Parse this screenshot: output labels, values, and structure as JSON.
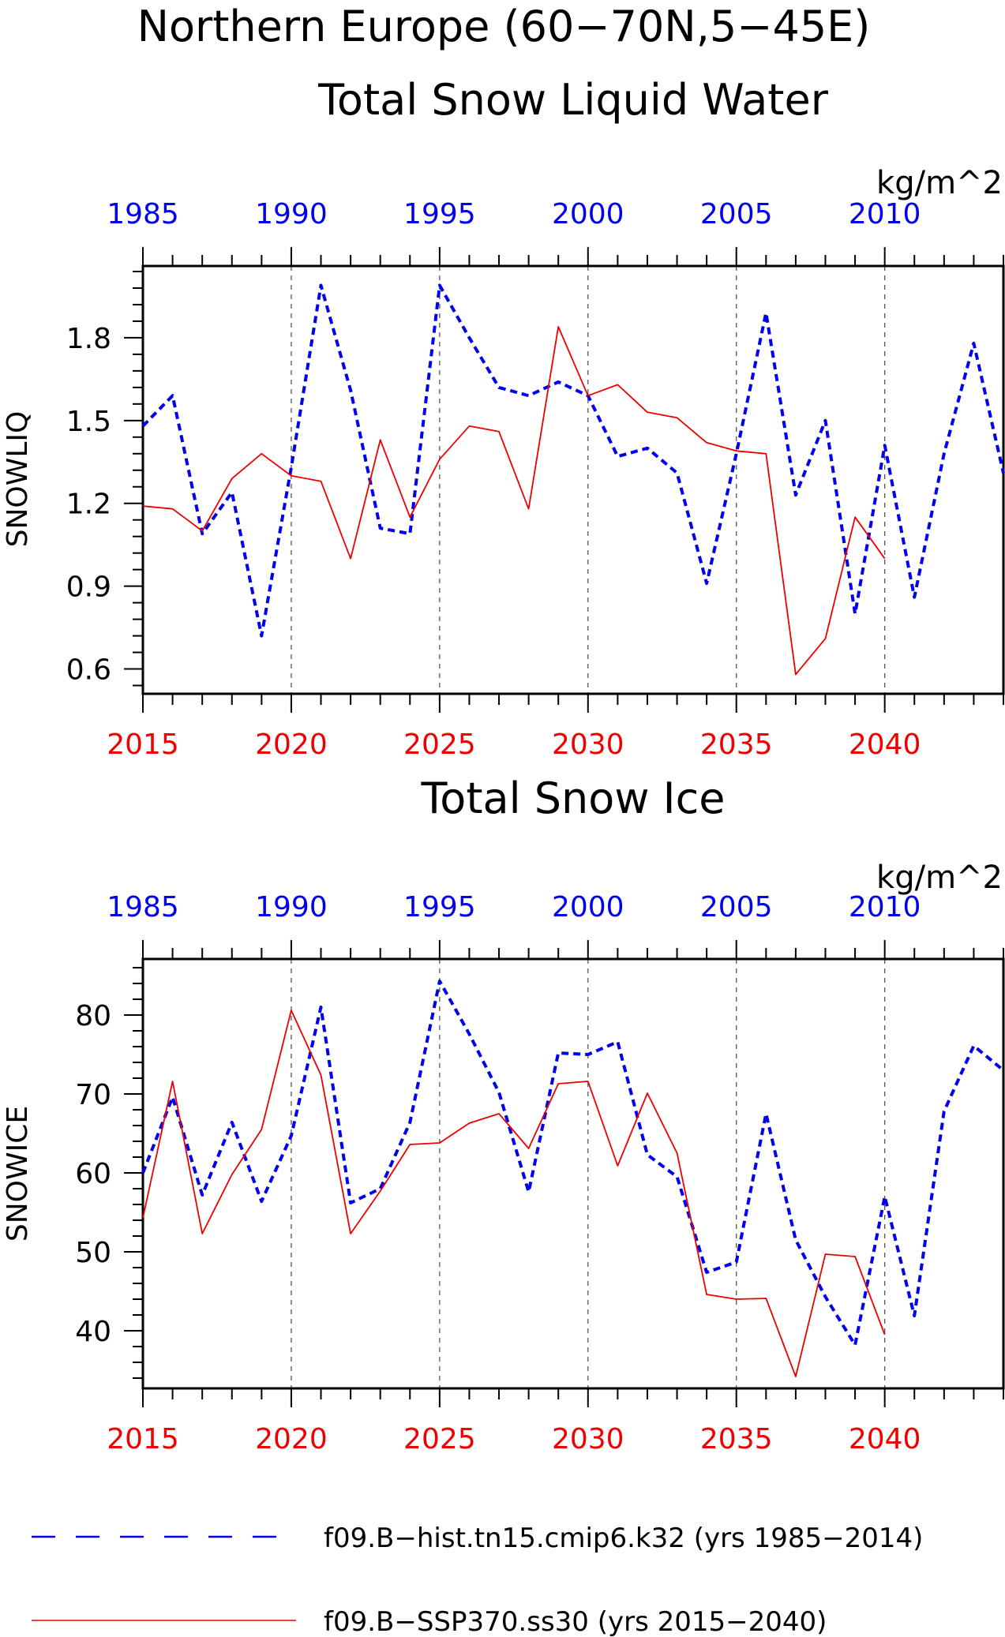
{
  "header": {
    "title_line1": "Northern Europe (60−70N,5−45E)"
  },
  "colors": {
    "hist": "#0000ee",
    "ssp": "#ee0000",
    "axis": "#000000",
    "grid": "#555555"
  },
  "legend": {
    "hist_label": "f09.B−hist.tn15.cmip6.k32 (yrs 1985−2014)",
    "ssp_label": "f09.B−SSP370.ss30 (yrs 2015−2040)"
  },
  "chart_data": [
    {
      "type": "line",
      "title": "Total Snow Liquid Water",
      "units": "kg/m^2",
      "ylabel": "SNOWLIQ",
      "ylim": [
        0.51,
        2.06
      ],
      "yticks": [
        0.6,
        0.9,
        1.2,
        1.5,
        1.8
      ],
      "ytick_labels": [
        "0.6",
        "0.9",
        "1.2",
        "1.5",
        "1.8"
      ],
      "x_bottom": {
        "range": [
          2015,
          2044
        ],
        "ticks": [
          2015,
          2020,
          2025,
          2030,
          2035,
          2040
        ],
        "labels": [
          "2015",
          "2020",
          "2025",
          "2030",
          "2035",
          "2040"
        ]
      },
      "x_top": {
        "range": [
          1985,
          2014
        ],
        "ticks": [
          1985,
          1990,
          1995,
          2000,
          2005,
          2010
        ],
        "labels": [
          "1985",
          "1990",
          "1995",
          "2000",
          "2005",
          "2010"
        ]
      },
      "grid_x": [
        2020,
        2025,
        2030,
        2035,
        2040
      ],
      "series": [
        {
          "name": "f09.B−hist.tn15.cmip6.k32 (yrs 1985−2014)",
          "axis": "top",
          "x": [
            1985,
            1986,
            1987,
            1988,
            1989,
            1990,
            1991,
            1992,
            1993,
            1994,
            1995,
            1996,
            1997,
            1998,
            1999,
            2000,
            2001,
            2002,
            2003,
            2004,
            2005,
            2006,
            2007,
            2008,
            2009,
            2010,
            2011,
            2012,
            2013,
            2014
          ],
          "y": [
            1.48,
            1.59,
            1.09,
            1.24,
            0.72,
            1.33,
            1.99,
            1.61,
            1.11,
            1.09,
            1.99,
            1.8,
            1.62,
            1.59,
            1.64,
            1.59,
            1.37,
            1.4,
            1.31,
            0.91,
            1.38,
            1.89,
            1.23,
            1.5,
            0.8,
            1.41,
            0.86,
            1.38,
            1.78,
            1.31
          ]
        },
        {
          "name": "f09.B−SSP370.ss30 (yrs 2015−2040)",
          "axis": "bottom",
          "x": [
            2015,
            2016,
            2017,
            2018,
            2019,
            2020,
            2021,
            2022,
            2023,
            2024,
            2025,
            2026,
            2027,
            2028,
            2029,
            2030,
            2031,
            2032,
            2033,
            2034,
            2035,
            2036,
            2037,
            2038,
            2039,
            2040
          ],
          "y": [
            1.19,
            1.18,
            1.1,
            1.29,
            1.38,
            1.3,
            1.28,
            1.0,
            1.43,
            1.15,
            1.36,
            1.48,
            1.46,
            1.18,
            1.84,
            1.59,
            1.63,
            1.53,
            1.51,
            1.42,
            1.39,
            1.38,
            0.58,
            0.71,
            1.15,
            1.0
          ]
        }
      ]
    },
    {
      "type": "line",
      "title": "Total Snow Ice",
      "units": "kg/m^2",
      "ylabel": "SNOWICE",
      "ylim": [
        32.7,
        87.1
      ],
      "yticks": [
        40,
        50,
        60,
        70,
        80
      ],
      "ytick_labels": [
        "40",
        "50",
        "60",
        "70",
        "80"
      ],
      "x_bottom": {
        "range": [
          2015,
          2044
        ],
        "ticks": [
          2015,
          2020,
          2025,
          2030,
          2035,
          2040
        ],
        "labels": [
          "2015",
          "2020",
          "2025",
          "2030",
          "2035",
          "2040"
        ]
      },
      "x_top": {
        "range": [
          1985,
          2014
        ],
        "ticks": [
          1985,
          1990,
          1995,
          2000,
          2005,
          2010
        ],
        "labels": [
          "1985",
          "1990",
          "1995",
          "2000",
          "2005",
          "2010"
        ]
      },
      "grid_x": [
        2020,
        2025,
        2030,
        2035,
        2040
      ],
      "series": [
        {
          "name": "f09.B−hist.tn15.cmip6.k32 (yrs 1985−2014)",
          "axis": "top",
          "x": [
            1985,
            1986,
            1987,
            1988,
            1989,
            1990,
            1991,
            1992,
            1993,
            1994,
            1995,
            1996,
            1997,
            1998,
            1999,
            2000,
            2001,
            2002,
            2003,
            2004,
            2005,
            2006,
            2007,
            2008,
            2009,
            2010,
            2011,
            2012,
            2013,
            2014
          ],
          "y": [
            60.0,
            69.6,
            57.2,
            66.4,
            56.4,
            64.7,
            81.0,
            56.2,
            58.0,
            66.4,
            84.3,
            77.6,
            70.2,
            57.6,
            75.2,
            75.0,
            76.6,
            62.3,
            59.5,
            47.4,
            48.7,
            67.5,
            51.5,
            44.3,
            38.2,
            57.0,
            41.9,
            67.8,
            76.1,
            73.0
          ]
        },
        {
          "name": "f09.B−SSP370.ss30 (yrs 2015−2040)",
          "axis": "bottom",
          "x": [
            2015,
            2016,
            2017,
            2018,
            2019,
            2020,
            2021,
            2022,
            2023,
            2024,
            2025,
            2026,
            2027,
            2028,
            2029,
            2030,
            2031,
            2032,
            2033,
            2034,
            2035,
            2036,
            2037,
            2038,
            2039,
            2040
          ],
          "y": [
            54.3,
            71.6,
            52.3,
            59.8,
            65.5,
            80.6,
            72.4,
            52.3,
            57.7,
            63.6,
            63.8,
            66.3,
            67.5,
            63.1,
            71.3,
            71.6,
            60.9,
            70.1,
            62.5,
            44.6,
            44.0,
            44.1,
            34.2,
            49.7,
            49.4,
            39.5
          ]
        }
      ]
    }
  ]
}
